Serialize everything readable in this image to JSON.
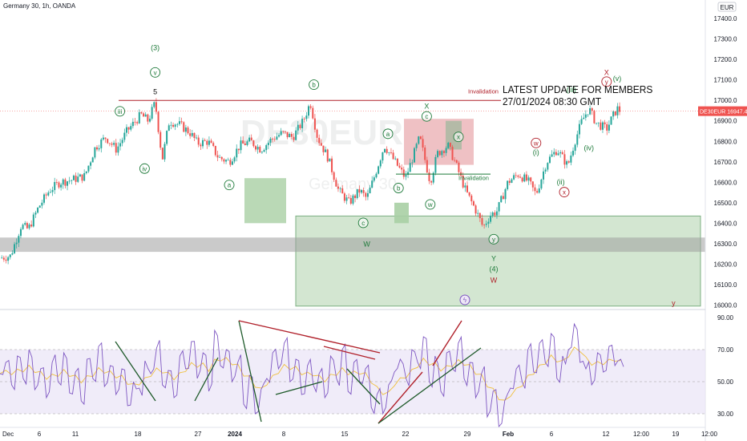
{
  "symbol_title": "Germany 30, 1h, OANDA",
  "currency": "EUR",
  "watermark": {
    "ticker": "DE30EUR",
    "name": "Germany 30"
  },
  "price_badge": {
    "symbol": "DE30EUR",
    "price": "16947.4"
  },
  "update_note": {
    "line1": "LATEST UPDATE FOR MEMBERS",
    "line2": "27/01/2024 08:30 GMT"
  },
  "invalidation_labels": [
    "Invalidation",
    "Invalidation"
  ],
  "colors": {
    "up": "#26a69a",
    "down": "#ef5350",
    "green_wave": "#1e7a3a",
    "red_wave": "#b0202a",
    "rsi": "#7e57c2",
    "rsi_ma": "#f0c040"
  },
  "chart_data": [
    {
      "type": "candlestick",
      "title": "Germany 30, 1h, OANDA",
      "ylabel": "EUR",
      "y_ticks": [
        16000,
        16100,
        16200,
        16300,
        16400,
        16500,
        16600,
        16700,
        16800,
        16900,
        17000,
        17100,
        17200,
        17300,
        17400
      ],
      "y_tick_labels": [
        "16000.0",
        "16100.0",
        "16200.0",
        "16300.0",
        "16400.0",
        "16500.0",
        "16600.0",
        "16700.0",
        "16800.0",
        "16900.0",
        "17000.0",
        "17100.0",
        "17200.0",
        "17300.0",
        "17400.0"
      ],
      "x_tick_labels": [
        "Dec",
        "6",
        "11",
        "18",
        "27",
        "2024",
        "8",
        "15",
        "22",
        "29",
        "Feb",
        "6",
        "12",
        "19",
        "12:00",
        "12:00"
      ],
      "ylim": [
        15990,
        17420
      ],
      "price_path": [
        [
          0,
          16230
        ],
        [
          3,
          16240
        ],
        [
          6,
          16390
        ],
        [
          8,
          16370
        ],
        [
          11,
          16480
        ],
        [
          14,
          16560
        ],
        [
          17,
          16600
        ],
        [
          20,
          16610
        ],
        [
          24,
          16630
        ],
        [
          27,
          16770
        ],
        [
          30,
          16820
        ],
        [
          33,
          16760
        ],
        [
          36,
          16850
        ],
        [
          40,
          16930
        ],
        [
          42,
          16900
        ],
        [
          44,
          16990
        ],
        [
          46,
          16710
        ],
        [
          48,
          16900
        ],
        [
          51,
          16880
        ],
        [
          54,
          16840
        ],
        [
          56,
          16790
        ],
        [
          59,
          16800
        ],
        [
          62,
          16720
        ],
        [
          65,
          16700
        ],
        [
          68,
          16780
        ],
        [
          71,
          16800
        ],
        [
          74,
          16760
        ],
        [
          77,
          16810
        ],
        [
          80,
          16840
        ],
        [
          83,
          16820
        ],
        [
          86,
          16900
        ],
        [
          88,
          16990
        ],
        [
          90,
          16820
        ],
        [
          93,
          16720
        ],
        [
          96,
          16560
        ],
        [
          99,
          16500
        ],
        [
          102,
          16560
        ],
        [
          104,
          16520
        ],
        [
          106,
          16620
        ],
        [
          109,
          16780
        ],
        [
          112,
          16700
        ],
        [
          115,
          16620
        ],
        [
          117,
          16720
        ],
        [
          119,
          16820
        ],
        [
          122,
          16600
        ],
        [
          124,
          16740
        ],
        [
          127,
          16780
        ],
        [
          129,
          16700
        ],
        [
          132,
          16560
        ],
        [
          135,
          16460
        ],
        [
          137,
          16380
        ],
        [
          139,
          16440
        ],
        [
          141,
          16460
        ],
        [
          144,
          16600
        ],
        [
          147,
          16640
        ],
        [
          150,
          16600
        ],
        [
          152,
          16540
        ],
        [
          155,
          16700
        ],
        [
          158,
          16760
        ],
        [
          161,
          16680
        ],
        [
          163,
          16800
        ],
        [
          165,
          16900
        ],
        [
          167,
          16960
        ],
        [
          169,
          16890
        ],
        [
          172,
          16860
        ],
        [
          174,
          16930
        ],
        [
          175,
          16960
        ],
        [
          176,
          16947
        ]
      ],
      "annotations": [
        {
          "text": "(3)",
          "color": "green",
          "price": 17245,
          "t": 44
        },
        {
          "text": "v",
          "color": "green",
          "circled": true,
          "price": 17125,
          "t": 44
        },
        {
          "text": "5",
          "color": "black",
          "price": 17030,
          "t": 44
        },
        {
          "text": "iii",
          "color": "green",
          "circled": true,
          "price": 16935,
          "t": 34
        },
        {
          "text": "iv",
          "color": "green",
          "circled": true,
          "price": 16655,
          "t": 41
        },
        {
          "text": "b",
          "color": "green",
          "circled": true,
          "price": 17065,
          "t": 89
        },
        {
          "text": "a",
          "color": "green",
          "circled": true,
          "price": 16575,
          "t": 65
        },
        {
          "text": "c",
          "color": "green",
          "circled": true,
          "price": 16390,
          "t": 103
        },
        {
          "text": "W",
          "color": "green",
          "price": 16285,
          "t": 104
        },
        {
          "text": "a",
          "color": "green",
          "circled": true,
          "price": 16825,
          "t": 110
        },
        {
          "text": "X",
          "color": "green",
          "price": 16960,
          "t": 121
        },
        {
          "text": "c",
          "color": "green",
          "circled": true,
          "price": 16910,
          "t": 121
        },
        {
          "text": "b",
          "color": "green",
          "circled": true,
          "price": 16560,
          "t": 113
        },
        {
          "text": "x",
          "color": "green",
          "circled": true,
          "price": 16810,
          "t": 130
        },
        {
          "text": "w",
          "color": "green",
          "circled": true,
          "price": 16480,
          "t": 122
        },
        {
          "text": "y",
          "color": "green",
          "circled": true,
          "price": 16310,
          "t": 140
        },
        {
          "text": "Y",
          "color": "green",
          "price": 16215,
          "t": 140
        },
        {
          "text": "(4)",
          "color": "green",
          "price": 16165,
          "t": 140
        },
        {
          "text": "W",
          "color": "red",
          "price": 16110,
          "t": 140
        },
        {
          "text": "w",
          "color": "red",
          "circled": true,
          "price": 16780,
          "t": 152
        },
        {
          "text": "(i)",
          "color": "green",
          "price": 16735,
          "t": 152
        },
        {
          "text": "(ii)",
          "color": "green",
          "price": 16590,
          "t": 159
        },
        {
          "text": "x",
          "color": "red",
          "circled": true,
          "price": 16540,
          "t": 160
        },
        {
          "text": "(iii)",
          "color": "green",
          "price": 17040,
          "t": 162
        },
        {
          "text": "(iv)",
          "color": "green",
          "price": 16755,
          "t": 167
        },
        {
          "text": "X",
          "color": "red",
          "price": 17125,
          "t": 172
        },
        {
          "text": "y",
          "color": "red",
          "circled": true,
          "price": 17080,
          "t": 172
        },
        {
          "text": "(v)",
          "color": "green",
          "price": 17095,
          "t": 175
        },
        {
          "text": "y",
          "color": "red",
          "price": 15997,
          "t": 191
        }
      ]
    },
    {
      "type": "line",
      "series": [
        {
          "name": "",
          "values": [
            55,
            62,
            48,
            66,
            52,
            70,
            45,
            58,
            40,
            62,
            50,
            68,
            43,
            56,
            38,
            64,
            52,
            72,
            47,
            60,
            42,
            58,
            35,
            50,
            46,
            63,
            55,
            71,
            48,
            57,
            40,
            66,
            58,
            75,
            52,
            68,
            44,
            82,
            60,
            70,
            50,
            62,
            36,
            54,
            30,
            45,
            52,
            68,
            58,
            74,
            50,
            64,
            42,
            60,
            48,
            55,
            40,
            66,
            52,
            70,
            44,
            62,
            50,
            58,
            34,
            42,
            30,
            48,
            56,
            64,
            52,
            70,
            62,
            78,
            50,
            66,
            44,
            68,
            58,
            74,
            52,
            62,
            40,
            55,
            28,
            44,
            22,
            38,
            46,
            58,
            50,
            70,
            56,
            74,
            62,
            80,
            52,
            66,
            70,
            86,
            62,
            58,
            48,
            68,
            56,
            72,
            60,
            64
          ]
        }
      ],
      "y_ticks": [
        30,
        50,
        70,
        90
      ],
      "y_tick_labels": [
        "30.00",
        "50.00",
        "70.00",
        "90.00"
      ],
      "ylim": [
        22,
        92
      ],
      "band": [
        30,
        70
      ]
    }
  ]
}
